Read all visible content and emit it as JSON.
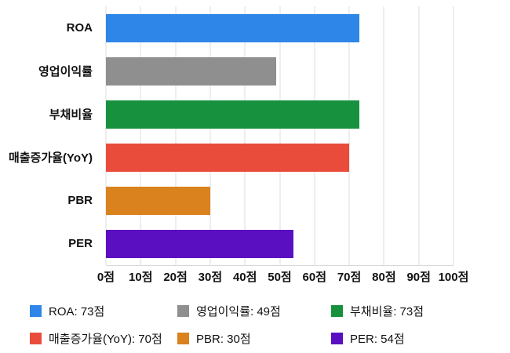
{
  "chart_data": {
    "type": "bar",
    "orientation": "horizontal",
    "title": "",
    "xlabel": "",
    "ylabel": "",
    "unit": "점",
    "xlim": [
      0,
      100
    ],
    "grid": true,
    "legend_position": "bottom",
    "categories": [
      "ROA",
      "영업이익률",
      "부채비율",
      "매출증가율(YoY)",
      "PBR",
      "PER"
    ],
    "values": [
      73,
      49,
      73,
      70,
      30,
      54
    ],
    "colors": [
      "#2e86e8",
      "#8f8f8f",
      "#17913e",
      "#ea4c3b",
      "#d9821e",
      "#5a10c0"
    ],
    "x_ticks": [
      "0점",
      "10점",
      "20점",
      "30점",
      "40점",
      "50점",
      "60점",
      "70점",
      "80점",
      "90점",
      "100점"
    ],
    "legend_labels": [
      "ROA: 73점",
      "영업이익률: 49점",
      "부채비율: 73점",
      "매출증가율(YoY): 70점",
      "PBR: 30점",
      "PER: 54점"
    ]
  }
}
